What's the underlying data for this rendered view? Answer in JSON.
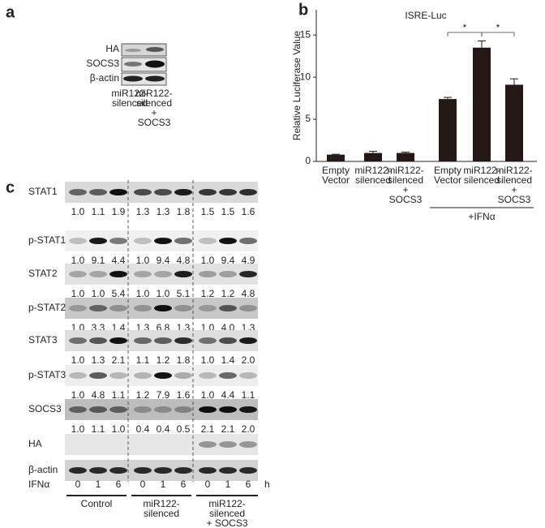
{
  "panels": {
    "a": {
      "label": "a",
      "rows": [
        "HA",
        "SOCS3",
        "β-actin"
      ],
      "lanes": [
        [
          "miR122-",
          "silenced"
        ],
        [
          "miR122-",
          "silenced",
          "+",
          "SOCS3"
        ]
      ]
    },
    "c": {
      "label": "c",
      "rows": [
        {
          "name": "STAT1",
          "quant": [
            "1.0",
            "1.1",
            "1.9",
            "1.3",
            "1.3",
            "1.8",
            "1.5",
            "1.5",
            "1.6"
          ]
        },
        {
          "name": "p-STAT1",
          "quant": [
            "1.0",
            "9.1",
            "4.4",
            "1.0",
            "9.4",
            "4.8",
            "1.0",
            "9.4",
            "4.9"
          ]
        },
        {
          "name": "STAT2",
          "quant": [
            "1.0",
            "1.0",
            "5.4",
            "1.0",
            "1.0",
            "5.1",
            "1.2",
            "1.2",
            "4.8"
          ]
        },
        {
          "name": "p-STAT2",
          "quant": [
            "1.0",
            "3.3",
            "1.4",
            "1.3",
            "6.8",
            "1.3",
            "1.0",
            "4.0",
            "1.3"
          ]
        },
        {
          "name": "STAT3",
          "quant": [
            "1.0",
            "1.3",
            "2.1",
            "1.1",
            "1.2",
            "1.8",
            "1.0",
            "1.4",
            "2.0"
          ]
        },
        {
          "name": "p-STAT3",
          "quant": [
            "1.0",
            "4.8",
            "1.1",
            "1.2",
            "7.9",
            "1.6",
            "1.0",
            "4.4",
            "1.1"
          ]
        },
        {
          "name": "SOCS3",
          "quant": [
            "1.0",
            "1.1",
            "1.0",
            "0.4",
            "0.4",
            "0.5",
            "2.1",
            "2.1",
            "2.0"
          ]
        },
        {
          "name": "HA"
        },
        {
          "name": "β-actin"
        }
      ],
      "treatment": "IFNα",
      "times": [
        0,
        1,
        6,
        0,
        1,
        6,
        0,
        1,
        6
      ],
      "time_unit": "h",
      "groups": [
        [
          "Control"
        ],
        [
          "miR122-",
          "silenced"
        ],
        [
          "miR122-",
          "silenced",
          "+ SOCS3"
        ]
      ]
    }
  },
  "chart_data": {
    "type": "bar",
    "panel_label": "b",
    "title": "ISRE-Luc",
    "y_label": "Relative Luciferase Value",
    "categories": [
      [
        "Empty",
        "Vector"
      ],
      [
        "miR122-",
        "silenced"
      ],
      [
        "miR122-",
        "silenced",
        "+",
        "SOCS3"
      ],
      [
        "Empty",
        "Vector"
      ],
      [
        "miR122-",
        "silenced"
      ],
      [
        "miR122-",
        "silenced",
        "+",
        "SOCS3"
      ]
    ],
    "values": [
      0.8,
      1.0,
      1.0,
      7.4,
      13.5,
      9.1
    ],
    "errors": [
      0.05,
      0.2,
      0.1,
      0.2,
      0.8,
      0.7
    ],
    "color": "#231815",
    "ylim": [
      0,
      18
    ],
    "yticks": [
      0,
      5,
      10,
      15
    ],
    "group_label": "+IFNα",
    "significance": [
      "*",
      "*"
    ]
  }
}
